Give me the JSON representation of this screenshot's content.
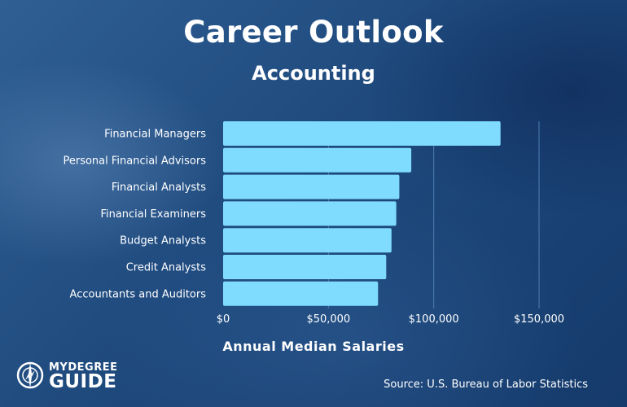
{
  "header": {
    "title": "Career Outlook",
    "subtitle": "Accounting"
  },
  "chart_data": {
    "type": "bar",
    "orientation": "horizontal",
    "categories": [
      "Financial Managers",
      "Personal Financial Advisors",
      "Financial Analysts",
      "Financial Examiners",
      "Budget Analysts",
      "Credit Analysts",
      "Accountants and Auditors"
    ],
    "values": [
      131710,
      89330,
      83660,
      82210,
      79940,
      77440,
      73560
    ],
    "xlabel": "Annual Median Salaries",
    "xlim": [
      0,
      150000
    ],
    "xticks": [
      0,
      50000,
      100000,
      150000
    ],
    "xtick_labels": [
      "$0",
      "$50,000",
      "$100,000",
      "$150,000"
    ],
    "grid": true,
    "bar_color": "#7fdcff",
    "grid_color": "#4f7fb3"
  },
  "footer": {
    "source": "Source: U.S. Bureau of Labor Statistics",
    "logo_top": "MYDEGREE",
    "logo_bottom": "GUIDE"
  }
}
